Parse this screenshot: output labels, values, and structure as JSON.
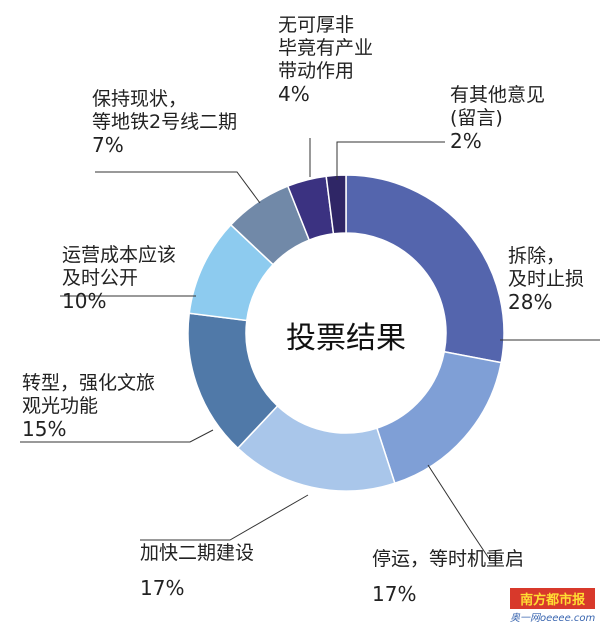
{
  "chart_data": {
    "type": "pie",
    "donut": true,
    "title": "投票结果",
    "slices": [
      {
        "label_lines": [
          "拆除，",
          "及时止损"
        ],
        "value": 28,
        "pct_label": "28%",
        "color": "#5465ad"
      },
      {
        "label_lines": [
          "停运，等时机重启"
        ],
        "value": 17,
        "pct_label": "17%",
        "color": "#7f9fd6"
      },
      {
        "label_lines": [
          "加快二期建设"
        ],
        "value": 17,
        "pct_label": "17%",
        "color": "#a9c6ea"
      },
      {
        "label_lines": [
          "转型，强化文旅",
          "观光功能"
        ],
        "value": 15,
        "pct_label": "15%",
        "color": "#5079a8"
      },
      {
        "label_lines": [
          "运营成本应该",
          "及时公开"
        ],
        "value": 10,
        "pct_label": "10%",
        "color": "#8dcbef"
      },
      {
        "label_lines": [
          "保持现状，",
          "等地铁2号线二期"
        ],
        "value": 7,
        "pct_label": "7%",
        "color": "#7189a8"
      },
      {
        "label_lines": [
          "无可厚非",
          "毕竟有产业",
          "带动作用"
        ],
        "value": 4,
        "pct_label": "4%",
        "color": "#3b3281"
      },
      {
        "label_lines": [
          "有其他意见",
          "(留言)"
        ],
        "value": 2,
        "pct_label": "2%",
        "color": "#2f2666"
      }
    ]
  },
  "watermark": {
    "brand": "南方都市报",
    "site": "奥一网oeeee.com"
  }
}
